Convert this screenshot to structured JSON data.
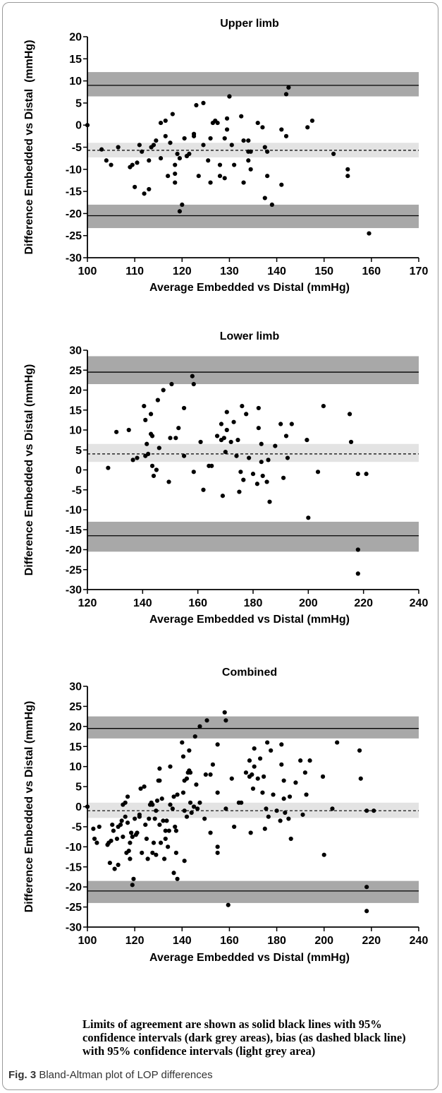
{
  "note": "Limits of agreement are shown as solid black lines with 95% confidence intervals (dark grey areas), bias (as dashed black line) with 95% confidence intervals (light grey area)",
  "caption": {
    "label": "Fig. 3",
    "text": "Bland-Altman plot of LOP differences"
  },
  "colors": {
    "dark_band": "#a8a8a8",
    "light_band": "#e3e3e3",
    "points": "#000000"
  },
  "chart_data": [
    {
      "type": "scatter",
      "title": "Upper limb",
      "xlabel": "Average Embedded vs Distal (mmHg)",
      "ylabel": "Difference Embedded vs Distal  (mmHg)",
      "xlim": [
        100,
        170
      ],
      "ylim": [
        -30,
        20
      ],
      "xticks": [
        100,
        110,
        120,
        130,
        140,
        150,
        160,
        170
      ],
      "yticks": [
        20,
        15,
        10,
        5,
        0,
        -5,
        -10,
        -15,
        -20,
        -25,
        -30
      ],
      "upper_loa": 9,
      "upper_loa_ci": [
        6.5,
        12
      ],
      "bias": -5.7,
      "bias_ci": [
        -7.3,
        -4
      ],
      "lower_loa": -20.5,
      "lower_loa_ci": [
        -23.3,
        -18
      ],
      "grid": false,
      "points": [
        [
          100,
          0
        ],
        [
          103,
          -5.5
        ],
        [
          104,
          -8
        ],
        [
          105,
          -9
        ],
        [
          106.5,
          -5
        ],
        [
          109,
          -9.5
        ],
        [
          109.5,
          -9
        ],
        [
          110,
          -14
        ],
        [
          110.5,
          -8.5
        ],
        [
          111,
          -4.5
        ],
        [
          111.5,
          -6
        ],
        [
          112,
          -15.5
        ],
        [
          113,
          -8
        ],
        [
          113.5,
          -5
        ],
        [
          113,
          -14.5
        ],
        [
          114,
          -4.5
        ],
        [
          114.5,
          -3.5
        ],
        [
          115.5,
          -7.5
        ],
        [
          115.5,
          0.5
        ],
        [
          116.5,
          -2.5
        ],
        [
          116.5,
          1
        ],
        [
          117,
          -11.5
        ],
        [
          117.5,
          -4
        ],
        [
          118,
          2.5
        ],
        [
          118.5,
          -11
        ],
        [
          118.5,
          -13
        ],
        [
          118.5,
          -9
        ],
        [
          119,
          -6.5
        ],
        [
          119.5,
          -19.5
        ],
        [
          119.5,
          -7.5
        ],
        [
          120,
          -18
        ],
        [
          120.5,
          -3
        ],
        [
          121,
          -7
        ],
        [
          121,
          -7
        ],
        [
          121.5,
          -6.5
        ],
        [
          122.5,
          -2.5
        ],
        [
          122.5,
          -2
        ],
        [
          123,
          4.5
        ],
        [
          123.5,
          -11.5
        ],
        [
          124.5,
          5
        ],
        [
          124.5,
          -4.5
        ],
        [
          125.5,
          -8
        ],
        [
          126,
          -13
        ],
        [
          126,
          -3
        ],
        [
          126.5,
          0.5
        ],
        [
          127,
          1
        ],
        [
          127.5,
          0.5
        ],
        [
          128,
          -11.5
        ],
        [
          128,
          -9
        ],
        [
          129,
          -3
        ],
        [
          129,
          -12
        ],
        [
          129.5,
          -1
        ],
        [
          129.5,
          1.5
        ],
        [
          130,
          6.5
        ],
        [
          130,
          6.5
        ],
        [
          130.5,
          -4.5
        ],
        [
          131,
          -9
        ],
        [
          132.5,
          2
        ],
        [
          133,
          -3.5
        ],
        [
          133,
          -13
        ],
        [
          134,
          -6
        ],
        [
          134,
          -8
        ],
        [
          134,
          -3.5
        ],
        [
          134.5,
          -10
        ],
        [
          134.5,
          -6
        ],
        [
          136,
          0.5
        ],
        [
          137,
          -0.5
        ],
        [
          137.5,
          -16.5
        ],
        [
          137.5,
          -5
        ],
        [
          138,
          -11.5
        ],
        [
          138,
          -6
        ],
        [
          139,
          -18
        ],
        [
          141,
          -1
        ],
        [
          141,
          -13.5
        ],
        [
          142,
          7
        ],
        [
          142,
          -2.5
        ],
        [
          142.5,
          8.5
        ],
        [
          146.5,
          -0.5
        ],
        [
          147.5,
          1
        ],
        [
          152,
          -6.5
        ],
        [
          155,
          -10
        ],
        [
          155,
          -11.5
        ],
        [
          159.5,
          -24.5
        ]
      ]
    },
    {
      "type": "scatter",
      "title": "Lower limb",
      "xlabel": "Average Embedded vs Distal (mmHg)",
      "ylabel": "Difference Embedded vs Distal (mmHg)",
      "xlim": [
        120,
        240
      ],
      "ylim": [
        -30,
        30
      ],
      "xticks": [
        120,
        140,
        160,
        180,
        200,
        220,
        240
      ],
      "yticks": [
        30,
        25,
        20,
        15,
        10,
        5,
        0,
        -5,
        -10,
        -15,
        -20,
        -25,
        -30
      ],
      "upper_loa": 24.5,
      "upper_loa_ci": [
        21.5,
        28.5
      ],
      "bias": 4,
      "bias_ci": [
        2,
        6.5
      ],
      "lower_loa": -16.5,
      "lower_loa_ci": [
        -20.5,
        -13
      ],
      "grid": false,
      "points": [
        [
          127.5,
          0.5
        ],
        [
          130.5,
          9.5
        ],
        [
          135,
          10
        ],
        [
          136.5,
          2.5
        ],
        [
          138,
          3
        ],
        [
          140.5,
          16
        ],
        [
          141,
          12.5
        ],
        [
          141,
          3.5
        ],
        [
          141.5,
          6.5
        ],
        [
          142,
          4
        ],
        [
          143,
          14
        ],
        [
          143,
          9
        ],
        [
          143.5,
          8.5
        ],
        [
          143.5,
          1
        ],
        [
          144,
          -1.5
        ],
        [
          145,
          0
        ],
        [
          145.5,
          17.5
        ],
        [
          146,
          5.5
        ],
        [
          147.5,
          20
        ],
        [
          149.5,
          -3
        ],
        [
          150,
          8
        ],
        [
          150.5,
          21.5
        ],
        [
          152,
          8
        ],
        [
          153,
          10.5
        ],
        [
          155,
          15.5
        ],
        [
          155,
          3.5
        ],
        [
          158,
          23.5
        ],
        [
          158.5,
          21.5
        ],
        [
          158.5,
          -0.5
        ],
        [
          161,
          7
        ],
        [
          162,
          -5
        ],
        [
          164,
          1
        ],
        [
          165,
          1
        ],
        [
          167,
          8.5
        ],
        [
          168.5,
          11.5
        ],
        [
          168.5,
          7.5
        ],
        [
          169,
          -6.5
        ],
        [
          169.5,
          8
        ],
        [
          170,
          4.5
        ],
        [
          170.5,
          14.5
        ],
        [
          170.5,
          10
        ],
        [
          172,
          7
        ],
        [
          173,
          12
        ],
        [
          174,
          3.5
        ],
        [
          174.5,
          7.5
        ],
        [
          175,
          -5.5
        ],
        [
          175.5,
          -0.5
        ],
        [
          176,
          16
        ],
        [
          176.5,
          -2.5
        ],
        [
          177.5,
          14
        ],
        [
          178.5,
          3
        ],
        [
          180,
          -1
        ],
        [
          181.5,
          -3.5
        ],
        [
          182,
          15.5
        ],
        [
          182,
          10.5
        ],
        [
          183,
          6.5
        ],
        [
          183,
          2
        ],
        [
          183.5,
          -1.5
        ],
        [
          185,
          -3
        ],
        [
          185.5,
          2.5
        ],
        [
          186,
          -8
        ],
        [
          188,
          6
        ],
        [
          190,
          11.5
        ],
        [
          191,
          -2
        ],
        [
          192,
          8.5
        ],
        [
          192.5,
          3
        ],
        [
          194,
          11.5
        ],
        [
          199.5,
          7.5
        ],
        [
          200,
          -12
        ],
        [
          203.5,
          -0.5
        ],
        [
          205.5,
          16
        ],
        [
          215,
          14
        ],
        [
          215.5,
          7
        ],
        [
          218,
          -1
        ],
        [
          218,
          -20
        ],
        [
          218,
          -26
        ],
        [
          221,
          -1
        ]
      ]
    },
    {
      "type": "scatter",
      "title": "Combined",
      "xlabel": "Average Embedded vs Distal (mmHg)",
      "ylabel": "Difference Embedded vs Distal (mmHg)",
      "xlim": [
        100,
        240
      ],
      "ylim": [
        -30,
        30
      ],
      "xticks": [
        100,
        120,
        140,
        160,
        180,
        200,
        220,
        240
      ],
      "yticks": [
        30,
        25,
        20,
        15,
        10,
        5,
        0,
        -5,
        -10,
        -15,
        -20,
        -25,
        -30
      ],
      "upper_loa": 19.5,
      "upper_loa_ci": [
        17,
        22.5
      ],
      "bias": -1,
      "bias_ci": [
        -2.8,
        1
      ],
      "lower_loa": -21,
      "lower_loa_ci": [
        -24,
        -18.5
      ],
      "grid": false,
      "points": [
        [
          100,
          0
        ],
        [
          102.5,
          -5.5
        ],
        [
          103,
          -8
        ],
        [
          104,
          -9
        ],
        [
          105,
          -5
        ],
        [
          108.5,
          -9.5
        ],
        [
          109,
          -9
        ],
        [
          109.5,
          -14
        ],
        [
          110,
          -8.5
        ],
        [
          110.5,
          -4.5
        ],
        [
          111,
          -6
        ],
        [
          111.5,
          -15.5
        ],
        [
          112.5,
          -8
        ],
        [
          113,
          -5
        ],
        [
          113,
          -14.5
        ],
        [
          114,
          -4.5
        ],
        [
          114.5,
          -3.5
        ],
        [
          115,
          -7.5
        ],
        [
          115,
          0.5
        ],
        [
          116,
          -2.5
        ],
        [
          116,
          1
        ],
        [
          116.5,
          -11.5
        ],
        [
          117,
          -4
        ],
        [
          117,
          2.5
        ],
        [
          117.5,
          -11
        ],
        [
          118,
          -13
        ],
        [
          118,
          -9
        ],
        [
          118.5,
          -6.5
        ],
        [
          119,
          -19.5
        ],
        [
          119,
          -7.5
        ],
        [
          119.5,
          -18
        ],
        [
          120,
          -3
        ],
        [
          120.5,
          -7
        ],
        [
          121,
          -6.5
        ],
        [
          122,
          -2.5
        ],
        [
          122,
          -2
        ],
        [
          122.5,
          4.5
        ],
        [
          123,
          -11.5
        ],
        [
          124,
          5
        ],
        [
          124.5,
          -4.5
        ],
        [
          125,
          -8
        ],
        [
          125.5,
          -13
        ],
        [
          126,
          -3
        ],
        [
          126.5,
          0.5
        ],
        [
          127,
          1
        ],
        [
          127.5,
          0.5
        ],
        [
          127.5,
          -11.5
        ],
        [
          128,
          -9
        ],
        [
          128.5,
          -3
        ],
        [
          129,
          -12
        ],
        [
          129,
          -1
        ],
        [
          129.5,
          1.5
        ],
        [
          130,
          6.5
        ],
        [
          130.5,
          6.5
        ],
        [
          130.5,
          -4.5
        ],
        [
          131,
          -9
        ],
        [
          131.5,
          2
        ],
        [
          132,
          -3.5
        ],
        [
          132.5,
          -13
        ],
        [
          133,
          -6
        ],
        [
          133,
          -8
        ],
        [
          133.5,
          -3.5
        ],
        [
          134,
          -10
        ],
        [
          134.5,
          -6
        ],
        [
          135,
          0.5
        ],
        [
          136,
          -0.5
        ],
        [
          136.5,
          -16.5
        ],
        [
          137,
          -5
        ],
        [
          137.5,
          -11.5
        ],
        [
          137.5,
          -6
        ],
        [
          138,
          -18
        ],
        [
          130.5,
          9.5
        ],
        [
          135,
          10
        ],
        [
          136.5,
          2.5
        ],
        [
          138,
          3
        ],
        [
          140,
          16
        ],
        [
          140.5,
          12.5
        ],
        [
          140.5,
          3.5
        ],
        [
          141,
          6.5
        ],
        [
          141,
          -1
        ],
        [
          141,
          -13.5
        ],
        [
          142,
          7
        ],
        [
          142,
          -2.5
        ],
        [
          142.5,
          8.5
        ],
        [
          143,
          14
        ],
        [
          143,
          9
        ],
        [
          143.5,
          8.5
        ],
        [
          143.5,
          1
        ],
        [
          144,
          -1.5
        ],
        [
          145,
          0
        ],
        [
          145.5,
          17.5
        ],
        [
          146,
          5.5
        ],
        [
          146.5,
          -0.5
        ],
        [
          147.5,
          20
        ],
        [
          147.5,
          1
        ],
        [
          149.5,
          -3
        ],
        [
          150,
          8
        ],
        [
          150.5,
          21.5
        ],
        [
          152,
          8
        ],
        [
          152,
          -6.5
        ],
        [
          153,
          10.5
        ],
        [
          155,
          15.5
        ],
        [
          155,
          3.5
        ],
        [
          155,
          -10
        ],
        [
          155,
          -11.5
        ],
        [
          158,
          23.5
        ],
        [
          158.5,
          21.5
        ],
        [
          158.5,
          -0.5
        ],
        [
          159.5,
          -24.5
        ],
        [
          161,
          7
        ],
        [
          162,
          -5
        ],
        [
          164,
          1
        ],
        [
          165,
          1
        ],
        [
          167,
          8.5
        ],
        [
          168.5,
          11.5
        ],
        [
          168.5,
          7.5
        ],
        [
          169,
          -6.5
        ],
        [
          169.5,
          8
        ],
        [
          170,
          4.5
        ],
        [
          170.5,
          14.5
        ],
        [
          170.5,
          10
        ],
        [
          172,
          7
        ],
        [
          173,
          12
        ],
        [
          174,
          3.5
        ],
        [
          174.5,
          7.5
        ],
        [
          175,
          -5.5
        ],
        [
          175.5,
          -0.5
        ],
        [
          176,
          16
        ],
        [
          176.5,
          -2.5
        ],
        [
          177.5,
          14
        ],
        [
          178.5,
          3
        ],
        [
          180,
          -1
        ],
        [
          181.5,
          -3.5
        ],
        [
          182,
          15.5
        ],
        [
          182,
          10.5
        ],
        [
          183,
          6.5
        ],
        [
          183,
          2
        ],
        [
          183.5,
          -1.5
        ],
        [
          185,
          -3
        ],
        [
          185.5,
          2.5
        ],
        [
          186,
          -8
        ],
        [
          188,
          6
        ],
        [
          190,
          11.5
        ],
        [
          191,
          -2
        ],
        [
          192,
          8.5
        ],
        [
          192.5,
          3
        ],
        [
          194,
          11.5
        ],
        [
          199.5,
          7.5
        ],
        [
          200,
          -12
        ],
        [
          203.5,
          -0.5
        ],
        [
          205.5,
          16
        ],
        [
          215,
          14
        ],
        [
          215.5,
          7
        ],
        [
          218,
          -1
        ],
        [
          218,
          -20
        ],
        [
          218,
          -26
        ],
        [
          221,
          -1
        ]
      ]
    }
  ]
}
